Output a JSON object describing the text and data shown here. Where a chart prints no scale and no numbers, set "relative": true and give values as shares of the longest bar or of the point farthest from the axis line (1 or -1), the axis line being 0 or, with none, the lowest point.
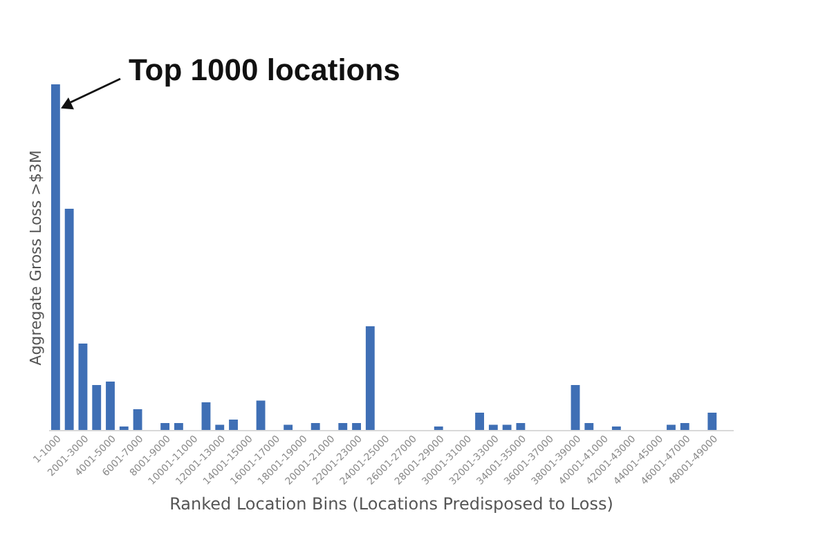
{
  "chart_data": {
    "type": "bar",
    "relative": true,
    "ylabel": "Aggregate Gross Loss >$3M",
    "xlabel": "Ranked Location Bins (Locations Predisposed to Loss)",
    "categories": [
      "1-1000",
      null,
      "2001-3000",
      null,
      "4001-5000",
      null,
      "6001-7000",
      null,
      "8001-9000",
      null,
      "10001-11000",
      null,
      "12001-13000",
      null,
      "14001-15000",
      null,
      "16001-17000",
      null,
      "18001-19000",
      null,
      "20001-21000",
      null,
      "22001-23000",
      null,
      "24001-25000",
      null,
      "26001-27000",
      null,
      "28001-29000",
      null,
      "30001-31000",
      null,
      "32001-33000",
      null,
      "34001-35000",
      null,
      "36001-37000",
      null,
      "38001-39000",
      null,
      "40001-41000",
      null,
      "42001-43000",
      null,
      "44001-45000",
      null,
      "46001-47000",
      null,
      "48001-49000",
      null
    ],
    "values": [
      1,
      0.64,
      0.25,
      0.13,
      0.14,
      0.01,
      0.06,
      0,
      0.02,
      0.02,
      0,
      0.08,
      0.015,
      0.03,
      0,
      0.085,
      0,
      0.015,
      0,
      0.02,
      0,
      0.02,
      0.02,
      0.3,
      0,
      0,
      0,
      0,
      0.01,
      0,
      0,
      0.05,
      0.015,
      0.015,
      0.02,
      0,
      0,
      0,
      0.13,
      0.02,
      0,
      0.01,
      0,
      0,
      0,
      0.015,
      0.02,
      0,
      0.05,
      0
    ],
    "color": "#3f6fb5",
    "annotations": [
      "Top 1000 locations"
    ]
  }
}
